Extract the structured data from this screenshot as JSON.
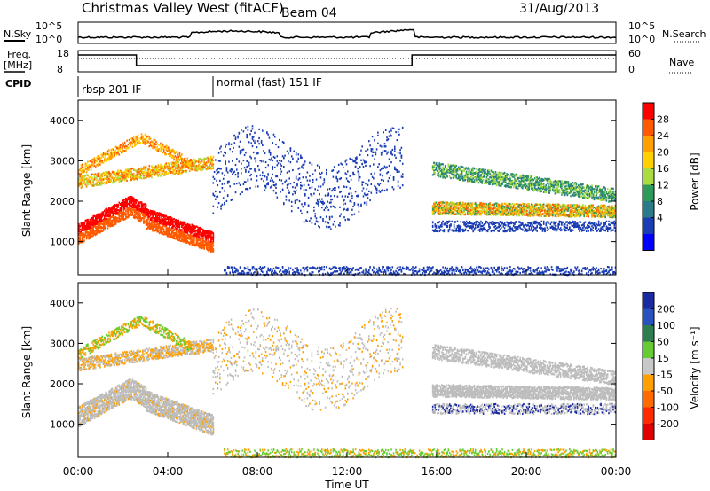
{
  "header": {
    "title": "Christmas Valley West (fitACF)",
    "beam": "Beam 04",
    "date": "31/Aug/2013"
  },
  "top_panels": {
    "nsky_label": "N.Sky",
    "nsearch_label": "N.Search",
    "noise_left_ticks": [
      "10^5",
      "10^0"
    ],
    "noise_right_ticks": [
      "10^5",
      "10^0"
    ],
    "freq_label_line1": "Freq.",
    "freq_label_line2": "[MHz]",
    "freq_ticks": [
      "18",
      "8"
    ],
    "nave_label": "Nave",
    "nave_ticks": [
      "60",
      "0"
    ],
    "cpid_label": "CPID",
    "cpid_segments": [
      "rbsp 201 IF",
      "normal (fast) 151 IF"
    ]
  },
  "chart_data": [
    {
      "type": "heatmap",
      "name": "power",
      "ylabel": "Slant Range [km]",
      "xlabel": "Time UT",
      "x_ticks": [
        "00:00",
        "04:00",
        "08:00",
        "12:00",
        "16:00",
        "20:00",
        "00:00"
      ],
      "x_range_hours": [
        0,
        24
      ],
      "y_ticks": [
        1000,
        2000,
        3000,
        4000
      ],
      "ylim": [
        180,
        4500
      ],
      "colorbar_label": "Power [dB]",
      "colorbar_ticks": [
        28,
        24,
        20,
        16,
        12,
        8,
        4
      ],
      "colorbar_colors": [
        "#ff0000",
        "#ff5a00",
        "#ffa000",
        "#ffd000",
        "#a8dc40",
        "#2e9a5a",
        "#2a7a8a",
        "#1a3cb4",
        "#0000ff"
      ]
    },
    {
      "type": "heatmap",
      "name": "velocity",
      "ylabel": "Slant Range [km]",
      "xlabel": "Time UT",
      "x_ticks": [
        "00:00",
        "04:00",
        "08:00",
        "12:00",
        "16:00",
        "20:00",
        "00:00"
      ],
      "x_range_hours": [
        0,
        24
      ],
      "y_ticks": [
        1000,
        2000,
        3000,
        4000
      ],
      "ylim": [
        180,
        4500
      ],
      "colorbar_label": "Velocity [m s⁻¹]",
      "colorbar_ticks": [
        200,
        100,
        50,
        15,
        -15,
        -50,
        -100,
        -200
      ],
      "colorbar_colors": [
        "#1a2aa0",
        "#2a52be",
        "#2e7d4e",
        "#66cc33",
        "#c8c8c8",
        "#ffa000",
        "#ff6a00",
        "#ff2a00",
        "#e00000"
      ]
    }
  ],
  "colors": {
    "ground_scatter": "#bdbdbd",
    "scatter_red": "#ff2a00",
    "scatter_blue": "#1a3cb4"
  },
  "xlabel_bottom": "Time UT"
}
